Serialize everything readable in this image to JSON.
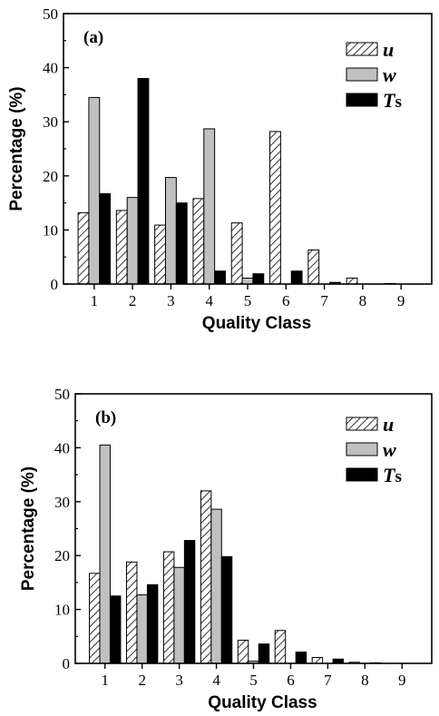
{
  "chart_data": [
    {
      "type": "bar",
      "panel_label": "(a)",
      "xlabel": "Quality Class",
      "ylabel": "Percentage (%)",
      "categories": [
        "1",
        "2",
        "3",
        "4",
        "5",
        "6",
        "7",
        "8",
        "9"
      ],
      "ylim": [
        0,
        50
      ],
      "yticks": [
        "0",
        "10",
        "20",
        "30",
        "40",
        "50"
      ],
      "series": [
        {
          "name_main": "u",
          "name_sub": "",
          "fill": "hatch",
          "values": [
            13.2,
            13.6,
            10.9,
            15.8,
            11.3,
            28.2,
            6.3,
            1.1,
            0.1
          ]
        },
        {
          "name_main": "w",
          "name_sub": "",
          "fill": "#c0c0c0",
          "values": [
            34.5,
            16.0,
            19.7,
            28.7,
            1.1,
            0.0,
            0.0,
            0.0,
            0.0
          ]
        },
        {
          "name_main": "T",
          "name_sub": "s",
          "fill": "#000000",
          "values": [
            16.7,
            38.0,
            15.0,
            2.4,
            1.9,
            2.4,
            0.3,
            0.0,
            0.0
          ]
        }
      ],
      "legend_position": "top-right",
      "grid": false
    },
    {
      "type": "bar",
      "panel_label": "(b)",
      "xlabel": "Quality Class",
      "ylabel": "Percentage (%)",
      "categories": [
        "1",
        "2",
        "3",
        "4",
        "5",
        "6",
        "7",
        "8",
        "9"
      ],
      "ylim": [
        0,
        50
      ],
      "yticks": [
        "0",
        "10",
        "20",
        "30",
        "40",
        "50"
      ],
      "series": [
        {
          "name_main": "u",
          "name_sub": "",
          "fill": "hatch",
          "values": [
            16.7,
            18.8,
            20.7,
            32.0,
            4.3,
            6.1,
            1.1,
            0.2,
            0.0
          ]
        },
        {
          "name_main": "w",
          "name_sub": "",
          "fill": "#c0c0c0",
          "values": [
            40.5,
            12.7,
            17.8,
            28.6,
            0.4,
            0.0,
            0.0,
            0.0,
            0.0
          ]
        },
        {
          "name_main": "T",
          "name_sub": "s",
          "fill": "#000000",
          "values": [
            12.5,
            14.6,
            22.8,
            19.8,
            3.6,
            2.1,
            0.8,
            0.1,
            0.0
          ]
        }
      ],
      "legend_position": "top-right",
      "grid": false
    }
  ]
}
